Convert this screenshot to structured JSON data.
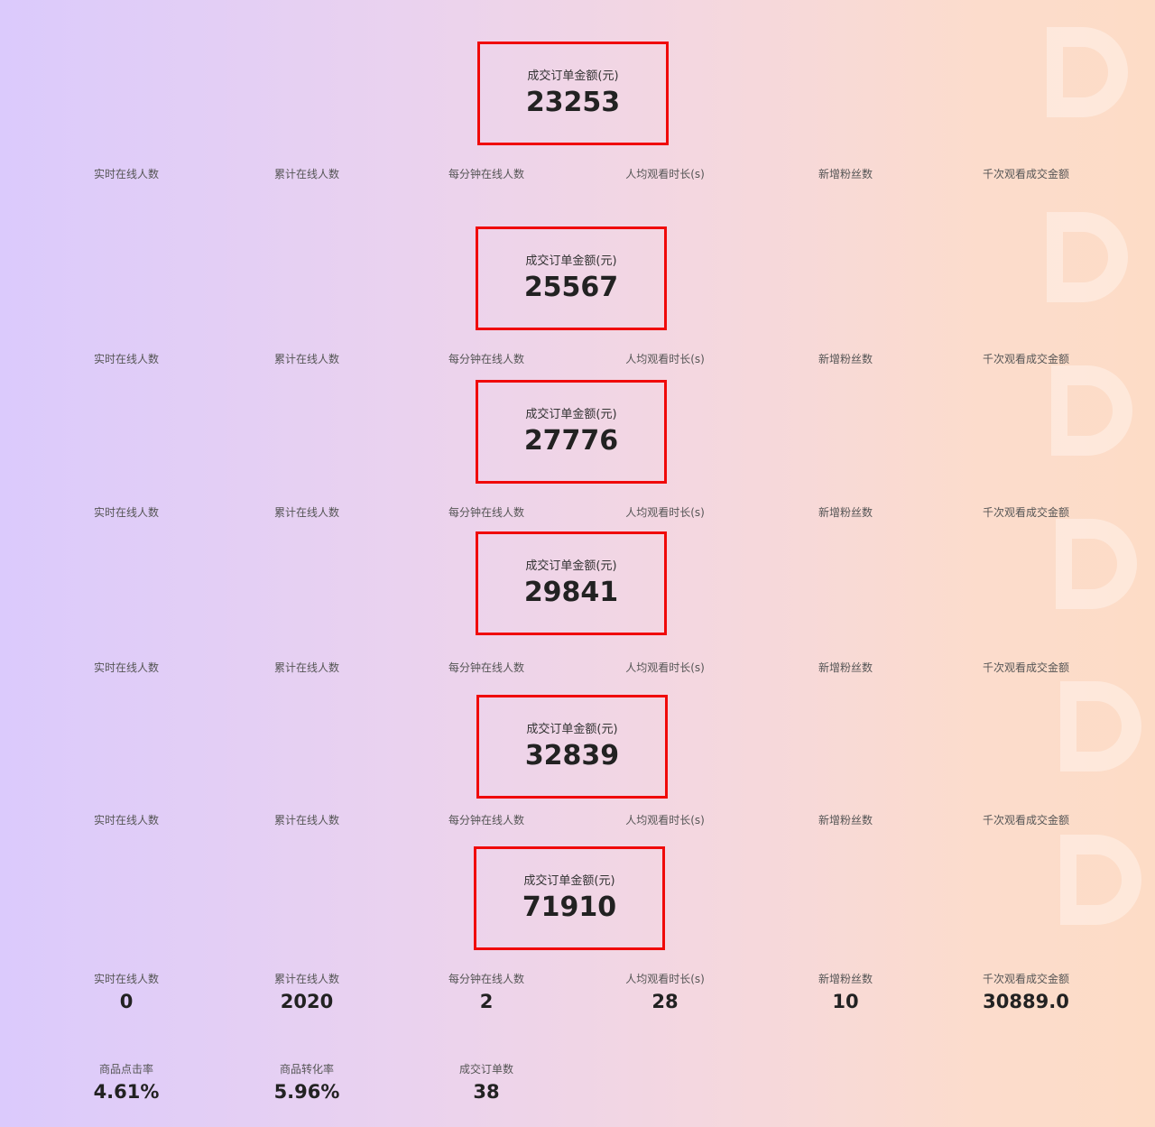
{
  "panels": [
    {
      "title": "成交订单金额(元)",
      "value": 23253,
      "metrics": [
        "实时在线人数",
        "累计在线人数",
        "每分钟在线人数",
        "人均观看时长(s)",
        "新增粉丝数",
        "千次观看成交金额"
      ]
    },
    {
      "title": "成交订单金额(元)",
      "value": 25567,
      "metrics": [
        "实时在线人数",
        "累计在线人数",
        "每分钟在线人数",
        "人均观看时长(s)",
        "新增粉丝数",
        "千次观看成交金额"
      ]
    },
    {
      "title": "成交订单金额(元)",
      "value": 27776,
      "metrics": [
        "实时在线人数",
        "累计在线人数",
        "每分钟在线人数",
        "人均观看时长(s)",
        "新增粉丝数",
        "千次观看成交金额"
      ]
    },
    {
      "title": "成交订单金额(元)",
      "value": 29841,
      "metrics": [
        "实时在线人数",
        "累计在线人数",
        "每分钟在线人数",
        "人均观看时长(s)",
        "新增粉丝数",
        "千次观看成交金额"
      ]
    },
    {
      "title": "成交订单金额(元)",
      "value": 32839,
      "metrics": [
        "实时在线人数",
        "累计在线人数",
        "每分钟在线人数",
        "人均观看时长(s)",
        "新增粉丝数",
        "千次观看成交金额"
      ]
    },
    {
      "title": "成交订单金额(元)",
      "value": 71910,
      "metrics": [
        "实时在线人数",
        "累计在线人数",
        "每分钟在线人数",
        "人均观看时长(s)",
        "新增粉丝数",
        "千次观看成交金额"
      ],
      "metric_values": [
        0,
        2020,
        2,
        28,
        10,
        "30889.0"
      ],
      "extra": [
        {
          "label": "商品点击率",
          "value": "4.61%"
        },
        {
          "label": "商品转化率",
          "value": "5.96%"
        },
        {
          "label": "成交订单数",
          "value": 38
        }
      ]
    }
  ]
}
